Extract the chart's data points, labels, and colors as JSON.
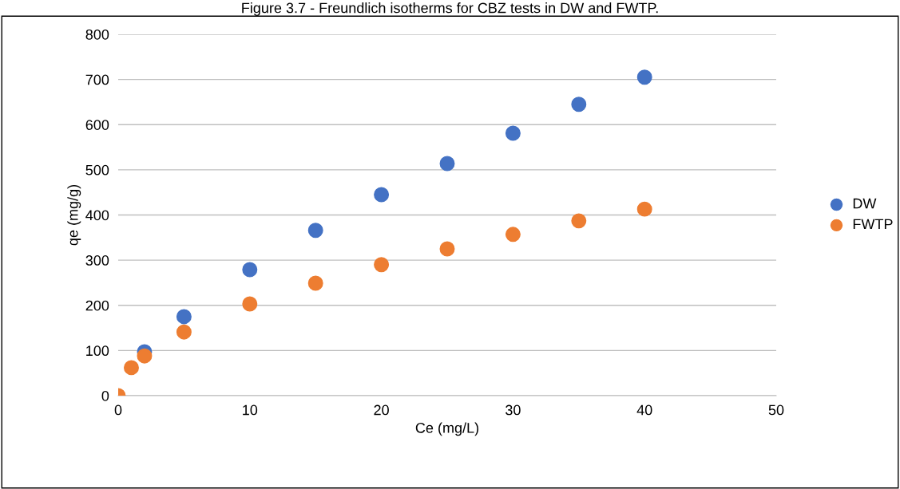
{
  "chart_data": {
    "type": "scatter",
    "title": "Figure 3.7 - Freundlich isotherms for CBZ tests in DW and FWTP.",
    "xlabel": "Ce (mg/L)",
    "ylabel": "qe (mg/g)",
    "x": [
      0,
      1,
      2,
      5,
      10,
      15,
      20,
      25,
      30,
      35,
      40
    ],
    "series": [
      {
        "name": "DW",
        "color": "#4472c4",
        "values": [
          null,
          null,
          97,
          175,
          279,
          366,
          445,
          514,
          581,
          645,
          705
        ]
      },
      {
        "name": "FWTP",
        "color": "#ed7d31",
        "values": [
          0,
          62,
          88,
          141,
          203,
          249,
          290,
          325,
          357,
          387,
          413
        ]
      }
    ],
    "xlim": [
      0,
      50
    ],
    "xticks": [
      0,
      10,
      20,
      30,
      40,
      50
    ],
    "ylim": [
      0,
      800
    ],
    "yticks": [
      0,
      100,
      200,
      300,
      400,
      500,
      600,
      700,
      800
    ],
    "grid": "y",
    "legend": "right",
    "marker": "circle"
  }
}
